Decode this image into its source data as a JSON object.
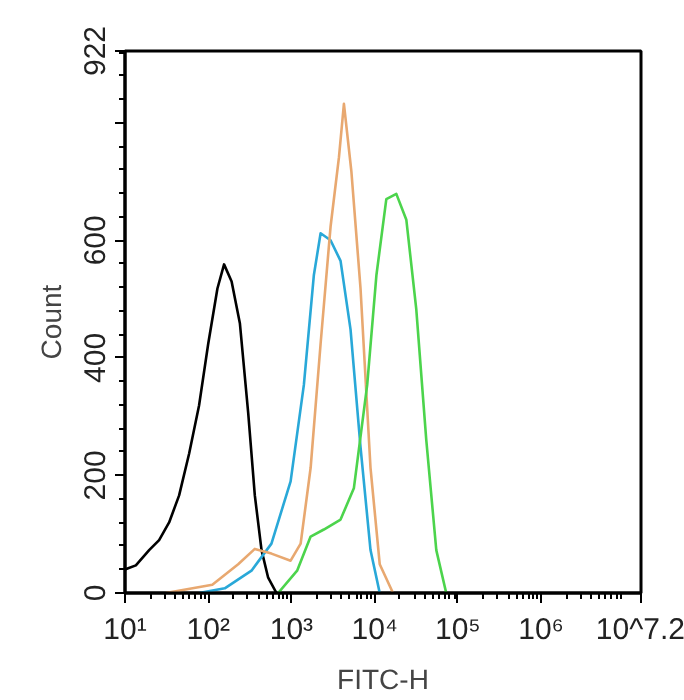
{
  "chart_data": {
    "type": "line",
    "xlabel": "FITC-H",
    "ylabel": "Count",
    "log": "x",
    "grid": false,
    "marker": "none",
    "line_style": "solid",
    "xlim": [
      10,
      15848932
    ],
    "ylim": [
      0,
      922
    ],
    "xticks": [
      {
        "value": 10,
        "label": "10¹"
      },
      {
        "value": 100,
        "label": "10²"
      },
      {
        "value": 1000,
        "label": "10³"
      },
      {
        "value": 10000,
        "label": "10⁴"
      },
      {
        "value": 100000,
        "label": "10⁵"
      },
      {
        "value": 1000000,
        "label": "10⁶"
      },
      {
        "value": 15848932,
        "label": "10^7.2"
      }
    ],
    "yticks": [
      0,
      200,
      400,
      600,
      {
        "value": 800,
        "label": null
      },
      922
    ],
    "series": [
      {
        "color": "#000000",
        "x": [
          10,
          13.5,
          19.5,
          25.7,
          33.9,
          44.7,
          58.9,
          77.6,
          100,
          129,
          155,
          191,
          240,
          302,
          363,
          437,
          525,
          661
        ],
        "values": [
          40,
          47,
          73,
          90,
          120,
          166,
          237,
          319,
          424,
          518,
          559,
          530,
          459,
          307,
          166,
          73,
          26,
          0
        ]
      },
      {
        "color": "#29a8d8",
        "x": [
          77.6,
          158,
          331,
          575,
          977,
          1410,
          1860,
          2240,
          2950,
          3890,
          5130,
          6760,
          8910,
          11500
        ],
        "values": [
          0,
          8,
          38,
          84,
          190,
          354,
          541,
          612,
          600,
          565,
          448,
          248,
          73,
          0
        ]
      },
      {
        "color": "#e8a870",
        "x": [
          30.9,
          112,
          229,
          363,
          575,
          977,
          1290,
          1700,
          2240,
          2950,
          3720,
          4270,
          5250,
          6760,
          8910,
          11500,
          16600
        ],
        "values": [
          0,
          14,
          49,
          75,
          67,
          55,
          84,
          213,
          424,
          623,
          741,
          832,
          717,
          518,
          213,
          49,
          0
        ]
      },
      {
        "color": "#4cd44c",
        "x": [
          692,
          1170,
          1700,
          2450,
          3890,
          5620,
          8130,
          10500,
          13800,
          18200,
          24000,
          31600,
          41700,
          55000,
          72400
        ],
        "values": [
          0,
          38,
          96,
          108,
          125,
          178,
          354,
          541,
          670,
          679,
          635,
          483,
          260,
          73,
          0
        ]
      }
    ]
  }
}
